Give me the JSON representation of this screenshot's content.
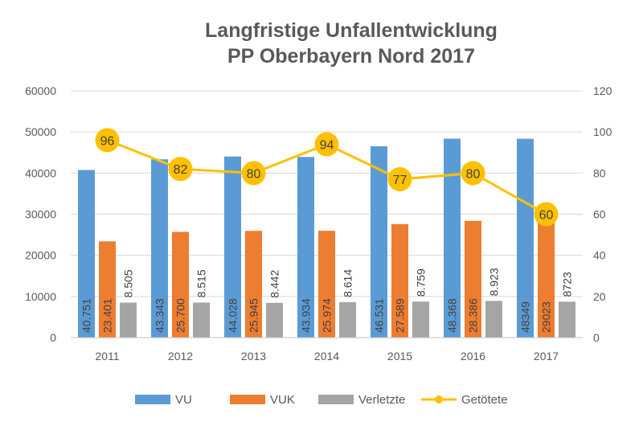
{
  "chart_data": {
    "type": "bar",
    "title": "Langfristige Unfallentwicklung",
    "subtitle": "PP Oberbayern Nord 2017",
    "categories": [
      "2011",
      "2012",
      "2013",
      "2014",
      "2015",
      "2016",
      "2017"
    ],
    "series": [
      {
        "name": "VU",
        "type": "bar",
        "axis": "left",
        "color": "#5B9BD5",
        "values": [
          40751,
          43343,
          44028,
          43934,
          46531,
          48368,
          48349
        ],
        "labels": [
          "40.751",
          "43.343",
          "44.028",
          "43.934",
          "46.531",
          "48.368",
          "48349"
        ]
      },
      {
        "name": "VUK",
        "type": "bar",
        "axis": "left",
        "color": "#ED7D31",
        "values": [
          23401,
          25700,
          25945,
          25974,
          27589,
          28386,
          29023
        ],
        "labels": [
          "23.401",
          "25.700",
          "25.945",
          "25.974",
          "27.589",
          "28.386",
          "29023"
        ]
      },
      {
        "name": "Verletzte",
        "type": "bar",
        "axis": "left",
        "color": "#A5A5A5",
        "values": [
          8505,
          8515,
          8442,
          8614,
          8759,
          8923,
          8723
        ],
        "labels": [
          "8.505",
          "8.515",
          "8.442",
          "8.614",
          "8.759",
          "8.923",
          "8723"
        ]
      },
      {
        "name": "Getötete",
        "type": "line",
        "axis": "right",
        "color": "#FFC000",
        "values": [
          96,
          82,
          80,
          94,
          77,
          80,
          60
        ],
        "labels": [
          "96",
          "82",
          "80",
          "94",
          "77",
          "80",
          "60"
        ]
      }
    ],
    "y_left": {
      "min": 0,
      "max": 60000,
      "ticks": [
        "0",
        "10000",
        "20000",
        "30000",
        "40000",
        "50000",
        "60000"
      ]
    },
    "y_right": {
      "min": 0,
      "max": 120,
      "ticks": [
        "0",
        "20",
        "40",
        "60",
        "80",
        "100",
        "120"
      ]
    },
    "grid": true,
    "legend": "bottom"
  }
}
